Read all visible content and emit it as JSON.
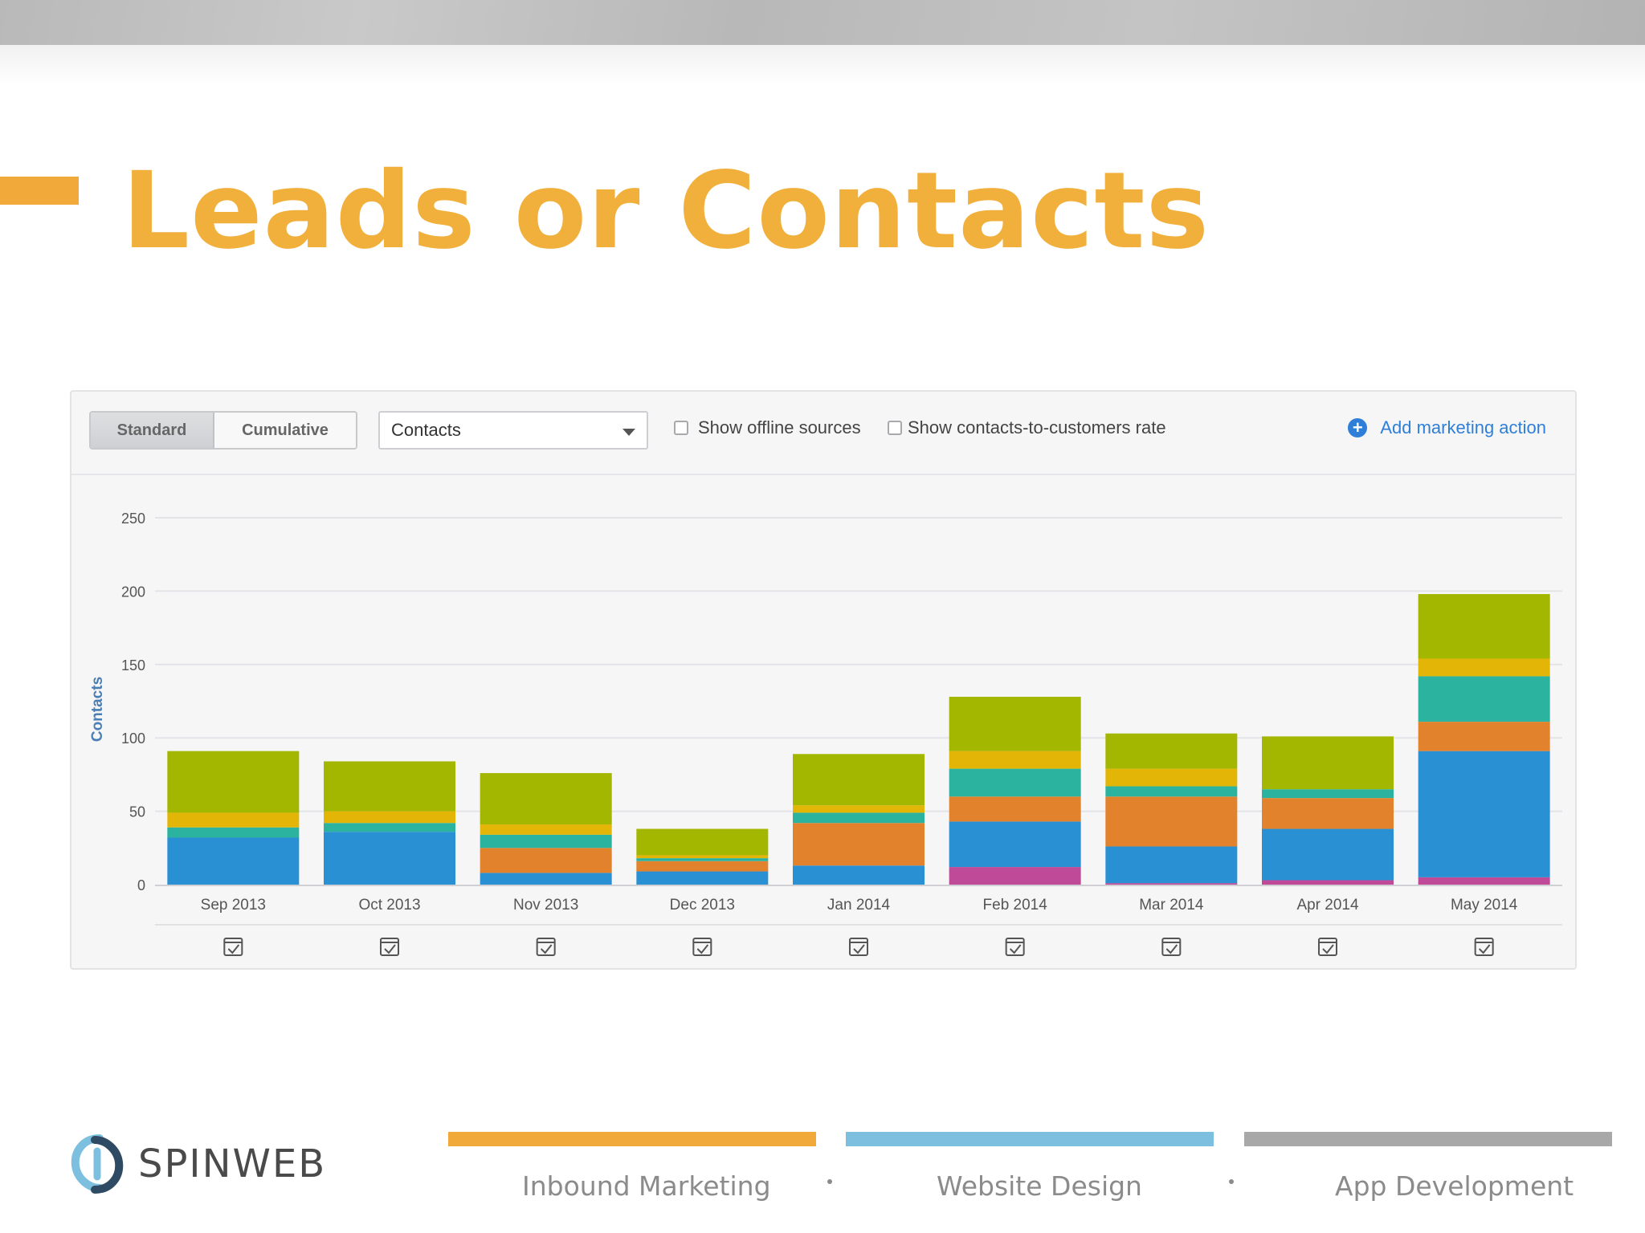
{
  "slide": {
    "title": "Leads or Contacts"
  },
  "toolbar": {
    "view_options": [
      "Standard",
      "Cumulative"
    ],
    "selected_view": "Standard",
    "metric_select": {
      "value": "Contacts"
    },
    "show_offline_sources": {
      "label": "Show offline sources",
      "checked": false
    },
    "show_rate": {
      "label": "Show contacts-to-customers rate",
      "checked": false
    },
    "add_action_label": "Add marketing action"
  },
  "chart_data": {
    "type": "bar",
    "stacked": true,
    "title": "",
    "xlabel": "",
    "ylabel": "Contacts",
    "ylim": [
      0,
      250
    ],
    "yticks": [
      0,
      50,
      100,
      150,
      200,
      250
    ],
    "grid": true,
    "categories": [
      "Sep 2013",
      "Oct 2013",
      "Nov 2013",
      "Dec 2013",
      "Jan 2014",
      "Feb 2014",
      "Mar 2014",
      "Apr 2014",
      "May 2014"
    ],
    "series": [
      {
        "color": "#bf4a97",
        "values": [
          0,
          0,
          0,
          0,
          0,
          12,
          1,
          3,
          5
        ]
      },
      {
        "color": "#2a90d4",
        "values": [
          32,
          36,
          8,
          9,
          13,
          31,
          25,
          35,
          86
        ]
      },
      {
        "color": "#e3822c",
        "values": [
          0,
          0,
          17,
          7,
          29,
          17,
          34,
          21,
          20
        ]
      },
      {
        "color": "#2bb39f",
        "values": [
          7,
          6,
          9,
          2,
          7,
          19,
          7,
          6,
          31
        ]
      },
      {
        "color": "#e3b506",
        "values": [
          10,
          8,
          7,
          2,
          5,
          12,
          12,
          0,
          12
        ]
      },
      {
        "color": "#a3b600",
        "values": [
          42,
          34,
          35,
          18,
          35,
          37,
          24,
          36,
          44
        ]
      }
    ],
    "annotation_icon": "calendar-check-icon"
  },
  "footer": {
    "brand": "SPINWEB",
    "services": [
      {
        "label": "Inbound Marketing",
        "color": "#f1a93a"
      },
      {
        "label": "Website Design",
        "color": "#7dbfdf"
      },
      {
        "label": "App Development",
        "color": "#a8a8a8"
      }
    ]
  }
}
